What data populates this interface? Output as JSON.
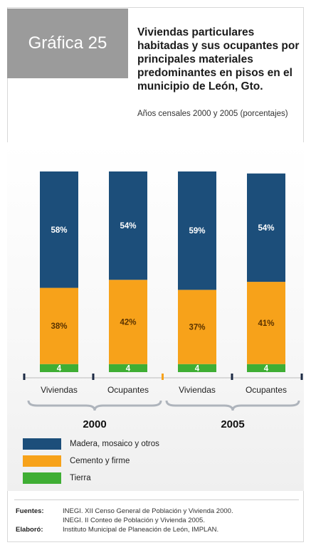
{
  "header": {
    "badge": "Gráfica 25",
    "title": "Viviendas particulares habitadas y sus ocupantes por principales materiales predominantes en pisos en el municipio de León, Gto.",
    "subtitle": "Años censales 2000 y 2005 (porcentajes)"
  },
  "chart_data": {
    "type": "bar",
    "stacked": true,
    "categories": [
      "Viviendas",
      "Ocupantes",
      "Viviendas",
      "Ocupantes"
    ],
    "groups": [
      {
        "label": "2000",
        "categories": [
          "Viviendas",
          "Ocupantes"
        ]
      },
      {
        "label": "2005",
        "categories": [
          "Viviendas",
          "Ocupantes"
        ]
      }
    ],
    "series": [
      {
        "name": "Tierra",
        "values": [
          4,
          4,
          4,
          4
        ],
        "labels": [
          "4",
          "4",
          "4",
          "4"
        ],
        "color": "#3fae34"
      },
      {
        "name": "Cemento y firme",
        "values": [
          38,
          42,
          37,
          41
        ],
        "labels": [
          "38%",
          "42%",
          "37%",
          "41%"
        ],
        "color": "#f7a21a"
      },
      {
        "name": "Madera, mosaico y otros",
        "values": [
          58,
          54,
          59,
          54
        ],
        "labels": [
          "58%",
          "54%",
          "59%",
          "54%"
        ],
        "color": "#1c4e7a"
      }
    ],
    "legend_order": [
      "Madera, mosaico y otros",
      "Cemento y firme",
      "Tierra"
    ],
    "legend": "bottom-left",
    "grid": false
  },
  "footer": {
    "sources_label": "Fuentes:",
    "sources": [
      "INEGI. XII Censo General de Población y Vivienda 2000.",
      "INEGI. II Conteo de Población y Vivienda 2005."
    ],
    "made_by_label": "Elaboró:",
    "made_by": "Instituto Municipal de Planeación de León, IMPLAN."
  }
}
